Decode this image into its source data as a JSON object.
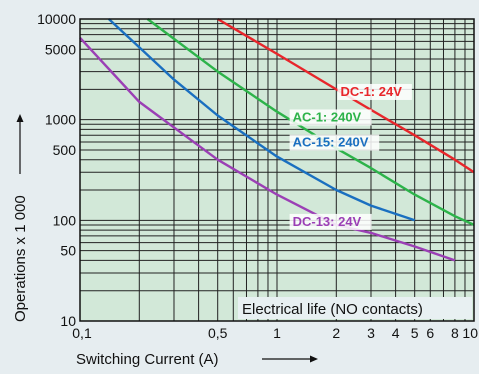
{
  "chart_data": {
    "type": "line",
    "xlabel": "Switching Current (A)",
    "ylabel": "Operations x 1 000",
    "x_scale": "log",
    "y_scale": "log",
    "xlim": [
      0.1,
      10
    ],
    "ylim": [
      10,
      10000
    ],
    "grid": true,
    "x_ticks": [
      {
        "v": 0.1,
        "label": "0,1"
      },
      {
        "v": 0.5,
        "label": "0,5"
      },
      {
        "v": 1,
        "label": "1"
      },
      {
        "v": 2,
        "label": "2"
      },
      {
        "v": 3,
        "label": "3"
      },
      {
        "v": 4,
        "label": "4"
      },
      {
        "v": 5,
        "label": "5"
      },
      {
        "v": 6,
        "label": "6"
      },
      {
        "v": 8,
        "label": "8"
      },
      {
        "v": 10,
        "label": "10"
      }
    ],
    "y_ticks": [
      {
        "v": 10,
        "label": "10"
      },
      {
        "v": 50,
        "label": "50"
      },
      {
        "v": 100,
        "label": "100"
      },
      {
        "v": 500,
        "label": "500"
      },
      {
        "v": 1000,
        "label": "1000"
      },
      {
        "v": 5000,
        "label": "5000"
      },
      {
        "v": 10000,
        "label": "10000"
      }
    ],
    "series": [
      {
        "name": "DC-1: 24V",
        "color": "#e8262b",
        "x": [
          0.5,
          1,
          2,
          3,
          5,
          8,
          10
        ],
        "y": [
          10000,
          4500,
          2000,
          1250,
          700,
          400,
          300
        ]
      },
      {
        "name": "AC-1: 240V",
        "color": "#2db34a",
        "x": [
          0.22,
          0.5,
          1,
          2,
          3,
          5,
          8,
          10
        ],
        "y": [
          10000,
          3000,
          1200,
          520,
          330,
          180,
          110,
          90
        ]
      },
      {
        "name": "AC-15: 240V",
        "color": "#1a6fc0",
        "x": [
          0.14,
          0.3,
          0.5,
          1,
          2,
          3,
          5
        ],
        "y": [
          10000,
          2500,
          1100,
          430,
          200,
          140,
          100
        ]
      },
      {
        "name": "DC-13: 24V",
        "color": "#9b3fb5",
        "x": [
          0.1,
          0.2,
          0.5,
          1,
          2,
          3,
          5,
          8
        ],
        "y": [
          6500,
          1500,
          400,
          180,
          90,
          75,
          55,
          40
        ]
      }
    ],
    "note": "Electrical life (NO contacts)"
  }
}
